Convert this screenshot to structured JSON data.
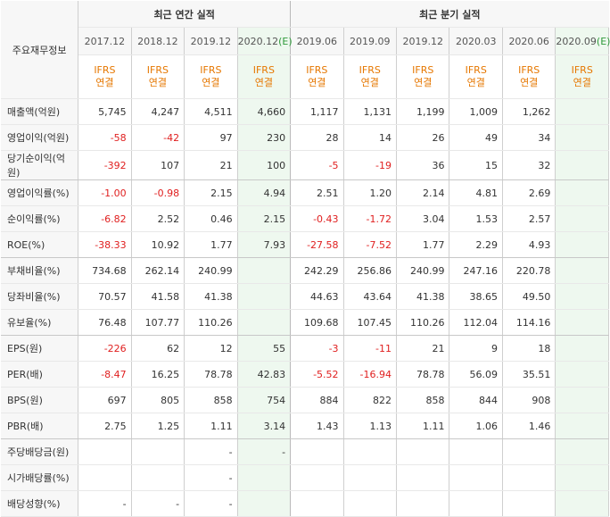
{
  "header": {
    "corner_label": "주요재무정보",
    "annual_title": "최근 연간 실적",
    "quarter_title": "최근 분기 실적",
    "annual_periods": [
      {
        "label": "2017.12",
        "est": ""
      },
      {
        "label": "2018.12",
        "est": ""
      },
      {
        "label": "2019.12",
        "est": ""
      },
      {
        "label": "2020.12",
        "est": "(E)"
      }
    ],
    "quarter_periods": [
      {
        "label": "2019.06",
        "est": ""
      },
      {
        "label": "2019.09",
        "est": ""
      },
      {
        "label": "2019.12",
        "est": ""
      },
      {
        "label": "2020.03",
        "est": ""
      },
      {
        "label": "2020.06",
        "est": ""
      },
      {
        "label": "2020.09",
        "est": "(E)"
      }
    ],
    "ifrs_line1": "IFRS",
    "ifrs_line2": "연결"
  },
  "rows": [
    {
      "label": "매출액(억원)",
      "values": [
        "5,745",
        "4,247",
        "4,511",
        "4,660",
        "1,117",
        "1,131",
        "1,199",
        "1,009",
        "1,262",
        ""
      ]
    },
    {
      "label": "영업이익(억원)",
      "values": [
        "-58",
        "-42",
        "97",
        "230",
        "28",
        "14",
        "26",
        "49",
        "34",
        ""
      ]
    },
    {
      "label": "당기순이익(억원)",
      "values": [
        "-392",
        "107",
        "21",
        "100",
        "-5",
        "-19",
        "36",
        "15",
        "32",
        ""
      ]
    },
    {
      "label": "영업이익률(%)",
      "values": [
        "-1.00",
        "-0.98",
        "2.15",
        "4.94",
        "2.51",
        "1.20",
        "2.14",
        "4.81",
        "2.69",
        ""
      ]
    },
    {
      "label": "순이익률(%)",
      "values": [
        "-6.82",
        "2.52",
        "0.46",
        "2.15",
        "-0.43",
        "-1.72",
        "3.04",
        "1.53",
        "2.57",
        ""
      ]
    },
    {
      "label": "ROE(%)",
      "values": [
        "-38.33",
        "10.92",
        "1.77",
        "7.93",
        "-27.58",
        "-7.52",
        "1.77",
        "2.29",
        "4.93",
        ""
      ]
    },
    {
      "label": "부채비율(%)",
      "values": [
        "734.68",
        "262.14",
        "240.99",
        "",
        "242.29",
        "256.86",
        "240.99",
        "247.16",
        "220.78",
        ""
      ]
    },
    {
      "label": "당좌비율(%)",
      "values": [
        "70.57",
        "41.58",
        "41.38",
        "",
        "44.63",
        "43.64",
        "41.38",
        "38.65",
        "49.50",
        ""
      ]
    },
    {
      "label": "유보율(%)",
      "values": [
        "76.48",
        "107.77",
        "110.26",
        "",
        "109.68",
        "107.45",
        "110.26",
        "112.04",
        "114.16",
        ""
      ]
    },
    {
      "label": "EPS(원)",
      "values": [
        "-226",
        "62",
        "12",
        "55",
        "-3",
        "-11",
        "21",
        "9",
        "18",
        ""
      ]
    },
    {
      "label": "PER(배)",
      "values": [
        "-8.47",
        "16.25",
        "78.78",
        "42.83",
        "-5.52",
        "-16.94",
        "78.78",
        "56.09",
        "35.51",
        ""
      ]
    },
    {
      "label": "BPS(원)",
      "values": [
        "697",
        "805",
        "858",
        "754",
        "884",
        "822",
        "858",
        "844",
        "908",
        ""
      ]
    },
    {
      "label": "PBR(배)",
      "values": [
        "2.75",
        "1.25",
        "1.11",
        "3.14",
        "1.43",
        "1.13",
        "1.11",
        "1.06",
        "1.46",
        ""
      ]
    },
    {
      "label": "주당배당금(원)",
      "values": [
        "",
        "",
        "-",
        "-",
        "",
        "",
        "",
        "",
        "",
        ""
      ]
    },
    {
      "label": "시가배당률(%)",
      "values": [
        "",
        "",
        "-",
        "",
        "",
        "",
        "",
        "",
        "",
        ""
      ]
    },
    {
      "label": "배당성향(%)",
      "values": [
        "-",
        "-",
        "-",
        "",
        "",
        "",
        "",
        "",
        "",
        ""
      ]
    }
  ],
  "colors": {
    "negative": "#e02020",
    "ifrs": "#e67700",
    "estimate_bg": "#eef8ef",
    "estimate_tag": "#2f9a3a",
    "header_bg": "#f7f7f7"
  }
}
